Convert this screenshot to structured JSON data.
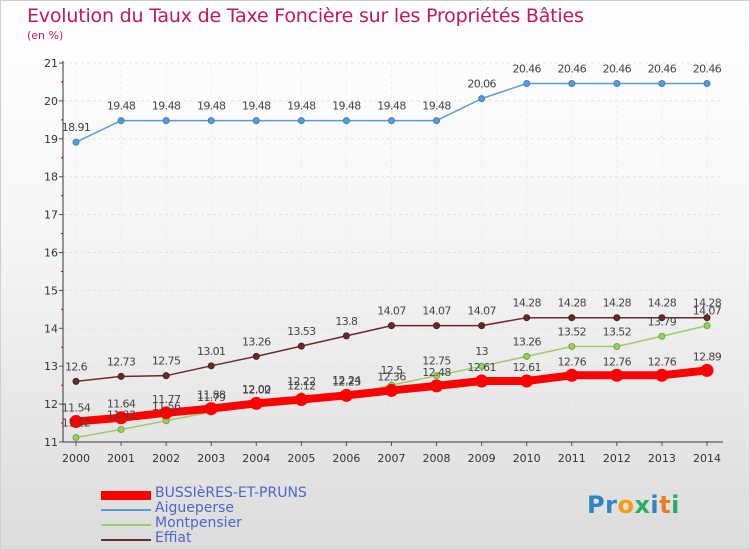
{
  "header": {
    "title": "Evolution du Taux de Taxe Foncière sur les Propriétés Bâties",
    "subtitle": "(en %)"
  },
  "logo": {
    "letters": [
      "P",
      "r",
      "o",
      "x",
      "i",
      "t",
      "i"
    ],
    "colors": [
      "#2e86c1",
      "#2e86c1",
      "#f39c12",
      "#27ae60",
      "#2e86c1",
      "#e67e22",
      "#27ae60"
    ]
  },
  "chart_data": {
    "type": "line",
    "title": "Evolution du Taux de Taxe Foncière sur les Propriétés Bâties",
    "ylabel": "(en %)",
    "xlabel": "",
    "ylim": [
      11,
      21
    ],
    "yticks": [
      "11",
      "12",
      "13",
      "14",
      "15",
      "16",
      "17",
      "18",
      "19",
      "20",
      "21"
    ],
    "categories": [
      "2000",
      "2001",
      "2002",
      "2003",
      "2004",
      "2005",
      "2006",
      "2007",
      "2008",
      "2009",
      "2010",
      "2011",
      "2012",
      "2013",
      "2014"
    ],
    "grid": true,
    "legend_position": "bottom-left",
    "series": [
      {
        "name": "BUSSIèRES-ET-PRUNS",
        "color": "#ff0000",
        "values": [
          11.54,
          11.64,
          11.77,
          11.88,
          12.02,
          12.12,
          12.23,
          12.36,
          12.48,
          12.61,
          12.61,
          12.76,
          12.76,
          12.76,
          12.89
        ],
        "labels": [
          "11.54",
          "11.64",
          "11.77",
          "11.88",
          "12.02",
          "12.12",
          "12.23",
          "12.36",
          "12.48",
          "12.61",
          "12.61",
          "12.76",
          "12.76",
          "12.76",
          "12.89"
        ]
      },
      {
        "name": "Aigueperse",
        "color": "#5b9bd5",
        "values": [
          18.91,
          19.48,
          19.48,
          19.48,
          19.48,
          19.48,
          19.48,
          19.48,
          19.48,
          20.06,
          20.46,
          20.46,
          20.46,
          20.46,
          20.46
        ],
        "labels": [
          "18.91",
          "19.48",
          "19.48",
          "19.48",
          "19.48",
          "19.48",
          "19.48",
          "19.48",
          "19.48",
          "20.06",
          "20.46",
          "20.46",
          "20.46",
          "20.46",
          "20.46"
        ]
      },
      {
        "name": "Montpensier",
        "color": "#9acd68",
        "values": [
          11.12,
          11.33,
          11.56,
          11.79,
          12.0,
          12.22,
          12.24,
          12.5,
          12.75,
          13.0,
          13.26,
          13.52,
          13.52,
          13.79,
          14.07
        ],
        "labels": [
          "11.12",
          "11.33",
          "11.56",
          "11.79",
          "12.00",
          "12.22",
          "12.24",
          "12.5",
          "12.75",
          "13",
          "13.26",
          "13.52",
          "13.52",
          "13.79",
          "14.07"
        ]
      },
      {
        "name": "Effiat",
        "color": "#6b2a2a",
        "values": [
          12.6,
          12.73,
          12.75,
          13.01,
          13.26,
          13.53,
          13.8,
          14.07,
          14.07,
          14.07,
          14.28,
          14.28,
          14.28,
          14.28,
          14.28
        ],
        "labels": [
          "12.6",
          "12.73",
          "12.75",
          "13.01",
          "13.26",
          "13.53",
          "13.8",
          "14.07",
          "14.07",
          "14.07",
          "14.28",
          "14.28",
          "14.28",
          "14.28",
          "14.28"
        ]
      }
    ]
  }
}
